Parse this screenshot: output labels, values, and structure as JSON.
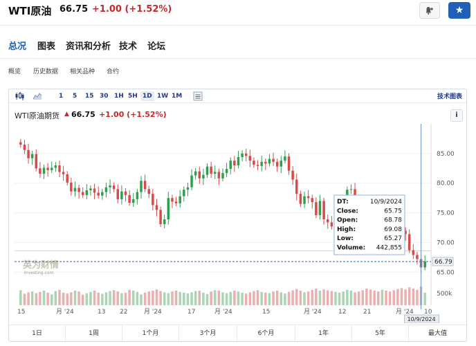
{
  "header": {
    "title": "WTI原油",
    "price": "66.75",
    "change": "+1.00 (+1.52%)"
  },
  "nav": {
    "items": [
      "总况",
      "图表",
      "资讯和分析",
      "技术",
      "论坛"
    ],
    "active": "总况"
  },
  "subnav": {
    "items": [
      "概览",
      "历史数据",
      "相关品种",
      "合约"
    ]
  },
  "toolbar": {
    "intervals": [
      "1",
      "5",
      "15",
      "30",
      "1H",
      "5H",
      "1D",
      "1W",
      "1M"
    ],
    "active_interval": "1D",
    "tech_chart": "技术图表"
  },
  "chart_header": {
    "name": "WTI原油期货",
    "price": "66.75",
    "change": "+1.00 (+1.52%)",
    "info": "i"
  },
  "tooltip": {
    "rows": [
      {
        "label": "DT:",
        "value": "10/9/2024"
      },
      {
        "label": "Close:",
        "value": "65.75"
      },
      {
        "label": "Open:",
        "value": "68.78"
      },
      {
        "label": "High:",
        "value": "69.08"
      },
      {
        "label": "Low:",
        "value": "65.27"
      },
      {
        "label": "Volume:",
        "value": "442,855"
      }
    ]
  },
  "watermark": {
    "text": "英为财情",
    "sub": "Investing.com"
  },
  "ranges": [
    "1日",
    "1周",
    "1个月",
    "3个月",
    "6个月",
    "1年",
    "5年",
    "最大值"
  ],
  "colors": {
    "up": "#2e9e4f",
    "down": "#d84a4a",
    "accent": "#1f5fb8",
    "change": "#c8262b"
  },
  "chart_data": {
    "type": "candlestick",
    "ylim": [
      62,
      90
    ],
    "y_ticks": [
      "85.00",
      "80.00",
      "75.00",
      "70.00",
      "65.00"
    ],
    "y_tick_values": [
      85,
      80,
      75,
      70,
      65
    ],
    "volume_label": "500k",
    "current_price_label": "66.79",
    "x_tick_labels": [
      "15",
      "月 '24",
      "13",
      "22",
      "月 '24",
      "17",
      "月 '24",
      "15",
      "月 '24",
      "12",
      "21",
      "月 '24",
      "10"
    ],
    "hover_date": "10/9/2024",
    "closes": [
      86.5,
      85.6,
      84.2,
      84.9,
      82.5,
      81.6,
      82.6,
      82.2,
      82.6,
      83.0,
      81.9,
      81.5,
      80.1,
      78.6,
      79.2,
      78.5,
      78.0,
      78.8,
      79.1,
      78.4,
      77.9,
      78.5,
      79.3,
      79.6,
      79.0,
      77.3,
      78.6,
      78.0,
      76.7,
      77.3,
      78.5,
      80.4,
      79.0,
      78.2,
      76.3,
      75.5,
      73.1,
      73.9,
      77.5,
      76.9,
      76.6,
      77.8,
      78.9,
      79.3,
      81.3,
      82.0,
      80.8,
      81.4,
      82.8,
      81.6,
      81.9,
      80.8,
      81.7,
      82.4,
      83.8,
      83.0,
      84.4,
      85.0,
      84.6,
      83.8,
      83.1,
      82.9,
      83.6,
      83.3,
      84.1,
      83.6,
      82.8,
      83.8,
      84.5,
      82.1,
      80.6,
      78.2,
      76.5,
      77.8,
      77.5,
      76.8,
      74.6,
      77.0,
      73.9,
      73.4,
      72.7,
      73.7,
      74.7,
      75.4,
      78.9,
      79.0,
      77.1,
      77.0,
      76.8,
      74.1,
      73.0,
      72.6,
      72.1,
      76.6,
      76.1,
      74.6,
      73.5,
      73.1,
      72.0,
      71.4,
      68.7,
      67.9,
      67.2,
      65.8,
      66.8
    ],
    "volumes": [
      0.72,
      0.55,
      0.62,
      0.66,
      0.58,
      0.64,
      0.7,
      0.6,
      0.52,
      0.68,
      0.74,
      0.6,
      0.56,
      0.62,
      0.7,
      0.66,
      0.5,
      0.58,
      0.64,
      0.7,
      0.6,
      0.55,
      0.62,
      0.68,
      0.72,
      0.66,
      0.58,
      0.6,
      0.74,
      0.7,
      0.64,
      0.52,
      0.6,
      0.66,
      0.7,
      0.76,
      0.68,
      0.62,
      0.58,
      0.66,
      0.7,
      0.64,
      0.6,
      0.56,
      0.62,
      0.68,
      0.7,
      0.6,
      0.54,
      0.66,
      0.72,
      0.7,
      0.62,
      0.58,
      0.64,
      0.7,
      0.66,
      0.6,
      0.56,
      0.62,
      0.68,
      0.72,
      0.64,
      0.6,
      0.58,
      0.66,
      0.7,
      0.62,
      0.56,
      0.64,
      0.72,
      0.78,
      0.7,
      0.62,
      0.66,
      0.74,
      0.8,
      0.7,
      0.76,
      0.72,
      0.68,
      0.64,
      0.6,
      0.66,
      0.74,
      0.7,
      0.62,
      0.66,
      0.72,
      0.8,
      0.76,
      0.7,
      0.66,
      0.74,
      0.7,
      0.66,
      0.72,
      0.78,
      0.82,
      0.76,
      0.86,
      0.8,
      0.74,
      0.9,
      0.6
    ]
  }
}
